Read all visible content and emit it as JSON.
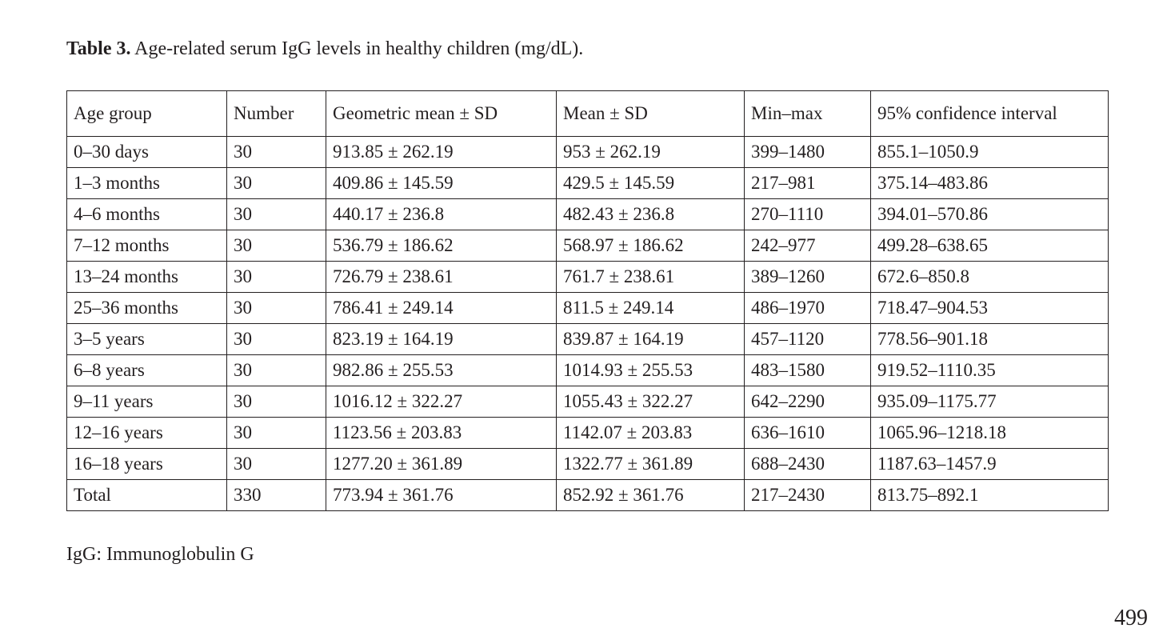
{
  "caption": {
    "label": "Table 3.",
    "text": " Age-related serum IgG levels in healthy children (mg/dL)."
  },
  "table": {
    "headers": [
      "Age group",
      "Number",
      "Geometric mean ± SD",
      "Mean ± SD",
      "Min–max",
      "95% confidence interval"
    ],
    "rows": [
      [
        "0–30 days",
        "30",
        "913.85 ± 262.19",
        "953 ± 262.19",
        "399–1480",
        "855.1–1050.9"
      ],
      [
        "1–3 months",
        "30",
        "409.86 ± 145.59",
        "429.5 ± 145.59",
        "217–981",
        "375.14–483.86"
      ],
      [
        "4–6 months",
        "30",
        "440.17 ± 236.8",
        "482.43 ± 236.8",
        "270–1110",
        "394.01–570.86"
      ],
      [
        "7–12 months",
        "30",
        "536.79 ± 186.62",
        "568.97 ± 186.62",
        "242–977",
        "499.28–638.65"
      ],
      [
        "13–24 months",
        "30",
        "726.79 ± 238.61",
        "761.7 ± 238.61",
        "389–1260",
        "672.6–850.8"
      ],
      [
        "25–36 months",
        "30",
        "786.41 ± 249.14",
        "811.5 ± 249.14",
        "486–1970",
        "718.47–904.53"
      ],
      [
        "3–5 years",
        "30",
        "823.19 ± 164.19",
        "839.87 ± 164.19",
        "457–1120",
        "778.56–901.18"
      ],
      [
        "6–8 years",
        "30",
        "982.86 ± 255.53",
        "1014.93 ± 255.53",
        "483–1580",
        "919.52–1110.35"
      ],
      [
        "9–11 years",
        "30",
        "1016.12 ± 322.27",
        "1055.43 ± 322.27",
        "642–2290",
        "935.09–1175.77"
      ],
      [
        "12–16 years",
        "30",
        "1123.56 ± 203.83",
        "1142.07 ± 203.83",
        "636–1610",
        "1065.96–1218.18"
      ],
      [
        "16–18 years",
        "30",
        "1277.20 ± 361.89",
        "1322.77 ± 361.89",
        "688–2430",
        "1187.63–1457.9"
      ],
      [
        "Total",
        "330",
        "773.94 ± 361.76",
        "852.92 ± 361.76",
        "217–2430",
        "813.75–892.1"
      ]
    ]
  },
  "footnote": "IgG: Immunoglobulin G",
  "page_number": "499"
}
